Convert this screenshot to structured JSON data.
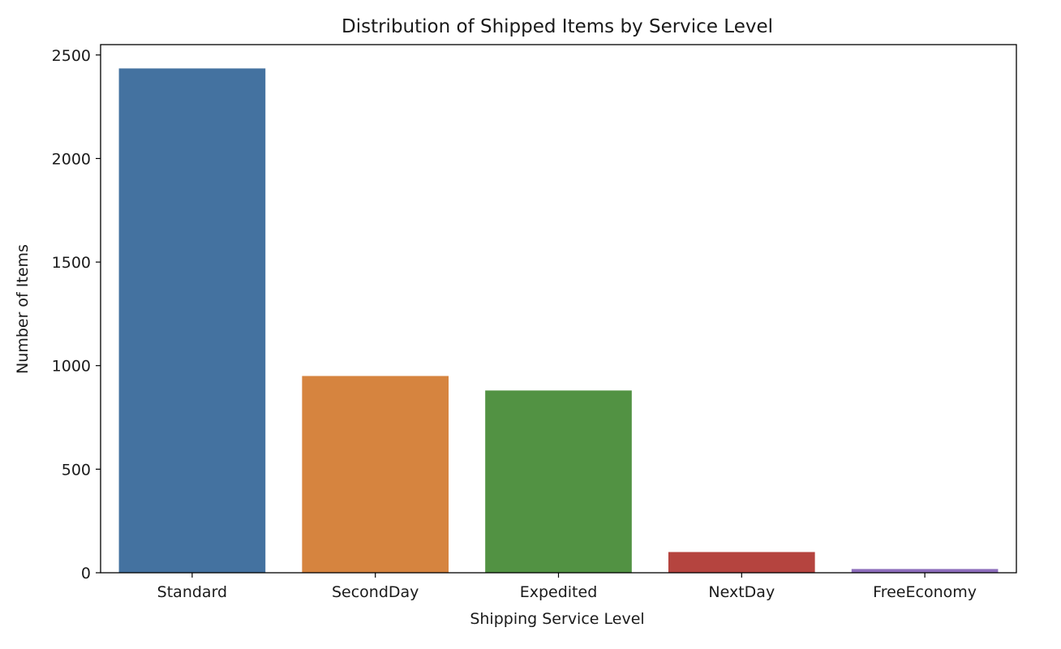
{
  "chart_data": {
    "type": "bar",
    "title": "Distribution of Shipped Items by Service Level",
    "xlabel": "Shipping Service Level",
    "ylabel": "Number of Items",
    "categories": [
      "Standard",
      "SecondDay",
      "Expedited",
      "NextDay",
      "FreeEconomy"
    ],
    "values": [
      2435,
      950,
      880,
      100,
      18
    ],
    "colors": [
      "#4472a0",
      "#d6843f",
      "#529243",
      "#b5443f",
      "#8d6dbc"
    ],
    "ylim": [
      0,
      2550
    ],
    "yticks": [
      0,
      500,
      1000,
      1500,
      2000,
      2500
    ],
    "grid": false
  }
}
